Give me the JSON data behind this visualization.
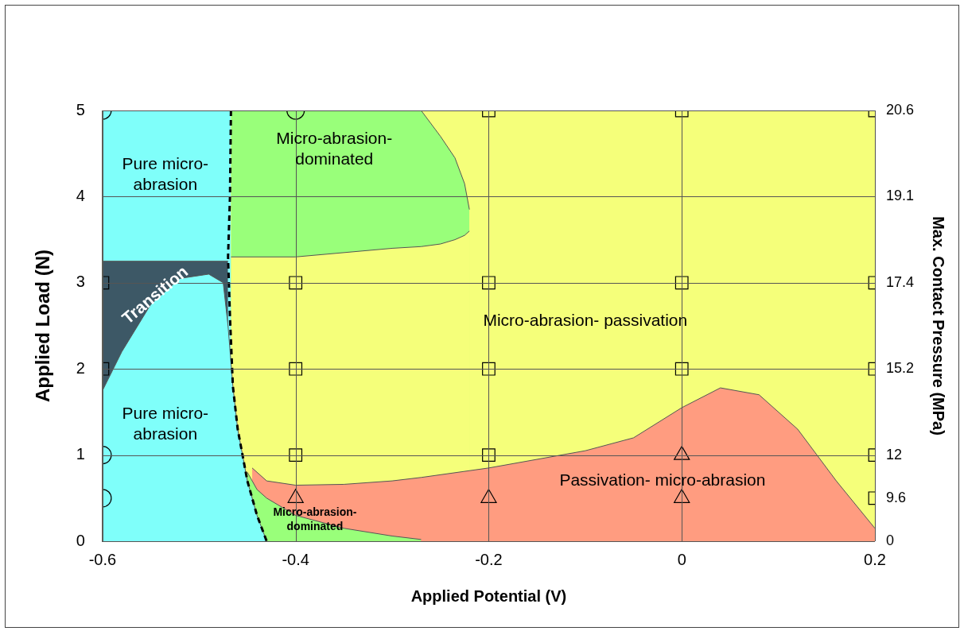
{
  "chart_data": {
    "type": "scatter",
    "xlabel": "Applied Potential (V)",
    "ylabel": "Applied Load (N)",
    "y2label": "Max. Contact Pressure (MPa)",
    "xlim": [
      -0.6,
      0.2
    ],
    "xticks": [
      -0.6,
      -0.4,
      -0.2,
      0,
      0.2
    ],
    "ylim": [
      0,
      5
    ],
    "yticks": [
      0,
      1,
      2,
      3,
      4,
      5
    ],
    "y2_categories": [
      "20.6",
      null,
      "19.1",
      null,
      "17.4",
      null,
      "15.2",
      null,
      "12",
      "9.6",
      "0"
    ],
    "grid": true,
    "legend": false,
    "series": [
      {
        "type": "area",
        "color": "#99ff7a",
        "x": [
          -0.467,
          -0.4,
          -0.3,
          -0.27,
          -0.25,
          -0.235,
          -0.225,
          -0.22
        ],
        "values": [
          5,
          5,
          5,
          5,
          4.7,
          4.45,
          4.15,
          3.85
        ]
      },
      {
        "type": "area",
        "color": "#f5ff7a",
        "x": [
          -0.467,
          -0.4,
          -0.3,
          -0.27,
          -0.25,
          -0.235,
          -0.225,
          -0.22
        ],
        "values": [
          3.3,
          3.3,
          3.4,
          3.42,
          3.45,
          3.5,
          3.55,
          3.6
        ]
      },
      {
        "type": "area",
        "color": "#ff9c80",
        "x": [
          -0.445,
          -0.43,
          -0.4,
          -0.35,
          -0.3,
          -0.27,
          -0.2,
          -0.1,
          -0.05,
          0,
          0.04,
          0.08,
          0.12,
          0.16,
          0.2
        ],
        "values": [
          0.85,
          0.7,
          0.65,
          0.66,
          0.7,
          0.74,
          0.85,
          1.05,
          1.2,
          1.55,
          1.78,
          1.7,
          1.3,
          0.7,
          0.15
        ]
      },
      {
        "type": "area",
        "color": "#99ff7a",
        "x": [
          -0.45,
          -0.44,
          -0.43,
          -0.4,
          -0.35,
          -0.3,
          -0.27
        ],
        "values": [
          0.8,
          0.6,
          0.5,
          0.3,
          0.15,
          0.06,
          0.02
        ]
      },
      {
        "type": "area",
        "color": "#7ffffa",
        "x": [
          -0.6,
          -0.467
        ],
        "values": [
          5,
          5
        ]
      },
      {
        "type": "area",
        "color": "#3d5866",
        "x": [
          -0.6,
          -0.47
        ],
        "values": [
          3.25,
          3.25
        ]
      },
      {
        "type": "area",
        "color": "#7ffffa",
        "x": [
          -0.6,
          -0.58,
          -0.55,
          -0.52,
          -0.49,
          -0.475,
          -0.47,
          -0.465,
          -0.46,
          -0.455,
          -0.45,
          -0.44,
          -0.43
        ],
        "values": [
          1.75,
          2.2,
          2.75,
          3.05,
          3.1,
          3.0,
          2.5,
          1.8,
          1.3,
          1.0,
          0.7,
          0.3,
          0
        ]
      },
      {
        "type": "line",
        "color": "#000000",
        "line_style": "dashed",
        "marker": "none",
        "x": [
          -0.467,
          -0.468,
          -0.47,
          -0.468,
          -0.465,
          -0.46,
          -0.455,
          -0.45,
          -0.44,
          -0.43
        ],
        "values": [
          5,
          4,
          3.3,
          2.6,
          1.8,
          1.3,
          1.0,
          0.7,
          0.3,
          0
        ]
      },
      {
        "type": "scatter",
        "color": "#000000",
        "marker": "circle",
        "x": [
          -0.6,
          -0.4,
          -0.6,
          -0.6
        ],
        "values": [
          5,
          5,
          1,
          0.5
        ]
      },
      {
        "type": "scatter",
        "color": "#000000",
        "marker": "square",
        "x": [
          -0.2,
          0,
          0.2,
          -0.6,
          -0.4,
          -0.2,
          0,
          0.2,
          -0.6,
          -0.4,
          -0.2,
          0,
          0.2,
          -0.4,
          -0.2,
          0.2,
          0.2
        ],
        "values": [
          5,
          5,
          5,
          3,
          3,
          3,
          3,
          3,
          2,
          2,
          2,
          2,
          2,
          1,
          1,
          1,
          0.5
        ]
      },
      {
        "type": "scatter",
        "color": "#000000",
        "marker": "triangle",
        "x": [
          0,
          -0.4,
          -0.2,
          0
        ],
        "values": [
          1,
          0.5,
          0.5,
          0.5
        ]
      }
    ],
    "bands": [
      {
        "axis": "x",
        "from": -0.6,
        "to": 0.2,
        "color": "#f5ff7a"
      }
    ],
    "annotations": [
      "Pure micro-abrasion",
      "Micro-abrasion-dominated",
      "Transition",
      "Pure micro-abrasion",
      "Micro-abrasion- passivation",
      "Passivation- micro-abrasion",
      {
        "text": "Micro-abrasion-dominated",
        "x": -0.38,
        "y": 0.25
      }
    ]
  }
}
